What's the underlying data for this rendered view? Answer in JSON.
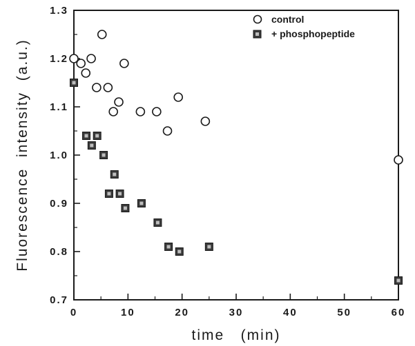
{
  "chart_data": {
    "type": "scatter",
    "xlabel": "time   (min)",
    "ylabel": "Fluorescence  intensity  (a.u.)",
    "xlim": [
      0,
      60
    ],
    "ylim": [
      0.7,
      1.3
    ],
    "x_ticks": [
      "0",
      "10",
      "20",
      "30",
      "40",
      "50",
      "60"
    ],
    "y_ticks": [
      "0.7",
      "0.8",
      "0.9",
      "1.0",
      "1.1",
      "1.2",
      "1.3"
    ],
    "grid": false,
    "legend_position": "top-right",
    "series": [
      {
        "name": "control",
        "marker": "open-circle",
        "color": "#1a1a1a",
        "points": [
          [
            0,
            1.2
          ],
          [
            1.3,
            1.19
          ],
          [
            2.2,
            1.17
          ],
          [
            3.2,
            1.2
          ],
          [
            4.2,
            1.14
          ],
          [
            5.2,
            1.25
          ],
          [
            6.3,
            1.14
          ],
          [
            7.3,
            1.09
          ],
          [
            8.3,
            1.11
          ],
          [
            9.3,
            1.19
          ],
          [
            12.3,
            1.09
          ],
          [
            15.3,
            1.09
          ],
          [
            17.3,
            1.05
          ],
          [
            19.3,
            1.12
          ],
          [
            24.3,
            1.07
          ],
          [
            60,
            0.99
          ]
        ]
      },
      {
        "name": "+ phosphopeptide",
        "marker": "filled-square",
        "color": "#3a3a3a",
        "points": [
          [
            0,
            1.15
          ],
          [
            2.3,
            1.04
          ],
          [
            3.3,
            1.02
          ],
          [
            4.3,
            1.04
          ],
          [
            5.5,
            1.0
          ],
          [
            6.5,
            0.92
          ],
          [
            7.5,
            0.96
          ],
          [
            8.5,
            0.92
          ],
          [
            9.5,
            0.89
          ],
          [
            12.5,
            0.9
          ],
          [
            15.5,
            0.86
          ],
          [
            17.5,
            0.81
          ],
          [
            19.5,
            0.8
          ],
          [
            25,
            0.81
          ],
          [
            60,
            0.74
          ]
        ]
      }
    ]
  }
}
